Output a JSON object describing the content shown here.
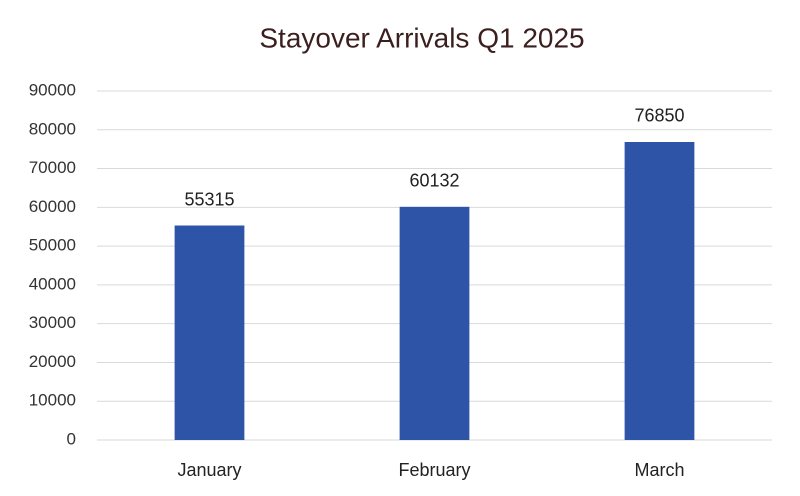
{
  "chart_data": {
    "type": "bar",
    "title": "Stayover Arrivals Q1 2025",
    "categories": [
      "January",
      "February",
      "March"
    ],
    "values": [
      55315,
      60132,
      76850
    ],
    "color": "#2e54a8",
    "ylim": [
      0,
      90000
    ],
    "yticks": [
      0,
      10000,
      20000,
      30000,
      40000,
      50000,
      60000,
      70000,
      80000,
      90000
    ],
    "grid": true
  }
}
